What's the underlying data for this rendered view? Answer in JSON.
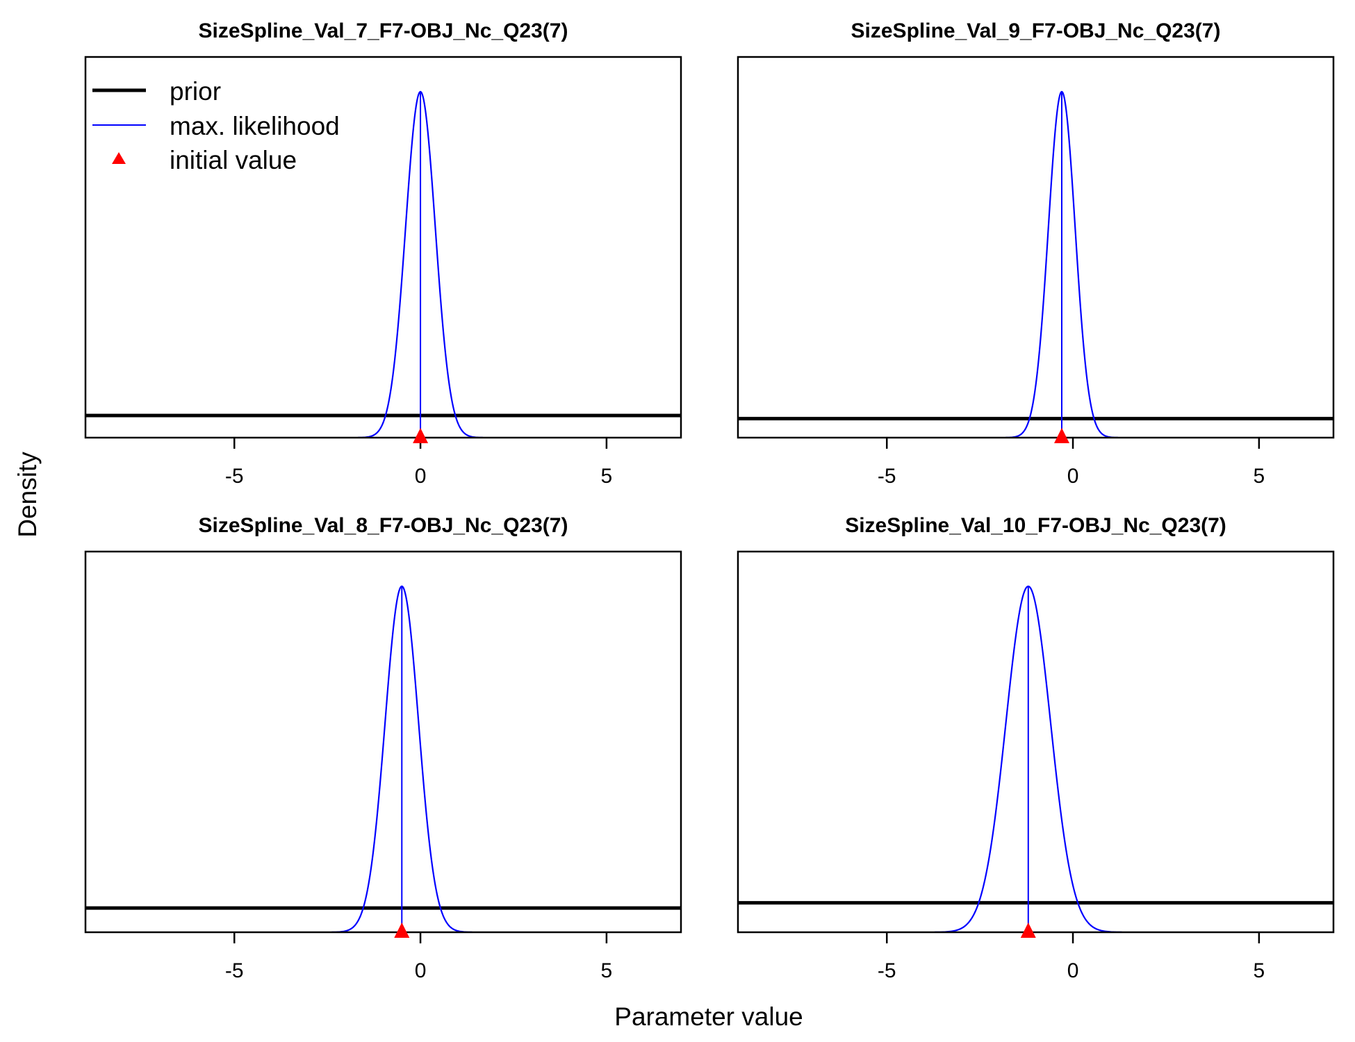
{
  "figure": {
    "xlabel": "Parameter value",
    "ylabel": "Density"
  },
  "legend": {
    "placement": "top-left of first panel",
    "items": [
      {
        "label": "prior",
        "color": "#000000",
        "kind": "thick-line"
      },
      {
        "label": "max. likelihood",
        "color": "#0000ff",
        "kind": "thin-line"
      },
      {
        "label": "initial value",
        "color": "#ff0000",
        "kind": "triangle"
      }
    ]
  },
  "colors": {
    "prior": "#000000",
    "likelihood": "#0000ff",
    "initial": "#ff0000"
  },
  "chart_data": [
    {
      "type": "line",
      "title": "SizeSpline_Val_7_F7-OBJ_Nc_Q23(7)",
      "xlim": [
        -9,
        7
      ],
      "xticks": [
        -5,
        0,
        5
      ],
      "tick_labels": [
        "-5",
        "0",
        "5"
      ],
      "grid": false,
      "series": [
        {
          "name": "prior",
          "kind": "uniform",
          "relative_level": 0.064
        },
        {
          "name": "max. likelihood",
          "kind": "normal",
          "mean": 0.0,
          "sd": 0.4
        }
      ],
      "initial_value": 0.0
    },
    {
      "type": "line",
      "title": "SizeSpline_Val_9_F7-OBJ_Nc_Q23(7)",
      "xlim": [
        -9,
        7
      ],
      "xticks": [
        -5,
        0,
        5
      ],
      "tick_labels": [
        "-5",
        "0",
        "5"
      ],
      "grid": false,
      "series": [
        {
          "name": "prior",
          "kind": "uniform",
          "relative_level": 0.055
        },
        {
          "name": "max. likelihood",
          "kind": "normal",
          "mean": -0.3,
          "sd": 0.36
        }
      ],
      "initial_value": -0.3
    },
    {
      "type": "line",
      "title": "SizeSpline_Val_8_F7-OBJ_Nc_Q23(7)",
      "xlim": [
        -9,
        7
      ],
      "xticks": [
        -5,
        0,
        5
      ],
      "tick_labels": [
        "-5",
        "0",
        "5"
      ],
      "grid": false,
      "series": [
        {
          "name": "prior",
          "kind": "uniform",
          "relative_level": 0.07
        },
        {
          "name": "max. likelihood",
          "kind": "normal",
          "mean": -0.5,
          "sd": 0.45
        }
      ],
      "initial_value": -0.5
    },
    {
      "type": "line",
      "title": "SizeSpline_Val_10_F7-OBJ_Nc_Q23(7)",
      "xlim": [
        -9,
        7
      ],
      "xticks": [
        -5,
        0,
        5
      ],
      "tick_labels": [
        "-5",
        "0",
        "5"
      ],
      "grid": false,
      "series": [
        {
          "name": "prior",
          "kind": "uniform",
          "relative_level": 0.085
        },
        {
          "name": "max. likelihood",
          "kind": "normal",
          "mean": -1.2,
          "sd": 0.6
        }
      ],
      "initial_value": -1.2
    }
  ]
}
